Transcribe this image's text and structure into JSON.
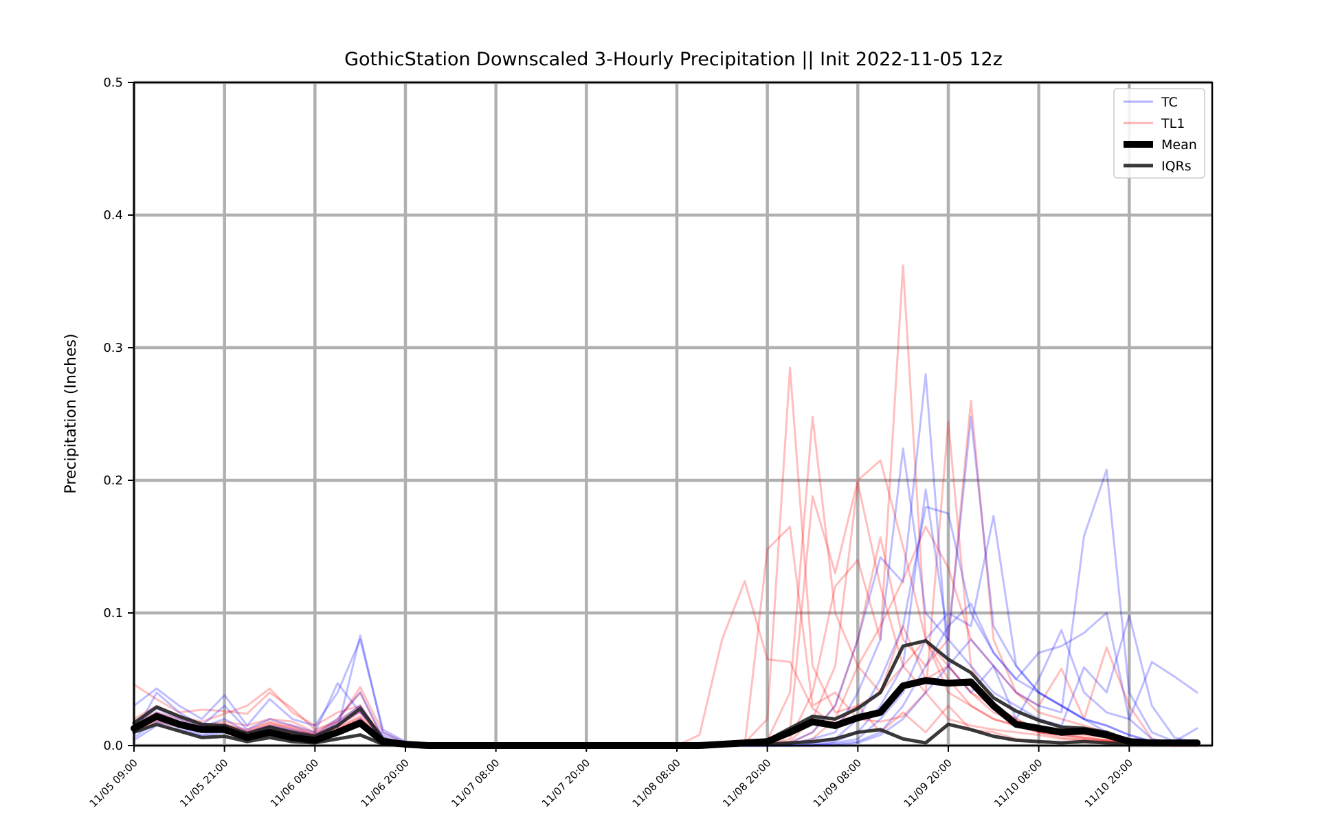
{
  "chart_data": {
    "type": "line",
    "title": "GothicStation Downscaled 3-Hourly Precipitation || Init 2022-11-05 12z",
    "xlabel": "",
    "ylabel": "Precipitation (Inches)",
    "ylim": [
      0,
      0.5
    ],
    "yticks": [
      "0.0",
      "0.1",
      "0.2",
      "0.3",
      "0.4",
      "0.5"
    ],
    "xlim": [
      "2022-11-05 09:00",
      "2022-11-11 08:00"
    ],
    "xticks": [
      "11/05 09:00",
      "11/05 21:00",
      "11/06 08:00",
      "11/06 20:00",
      "11/07 08:00",
      "11/07 20:00",
      "11/08 08:00",
      "11/08 20:00",
      "11/09 08:00",
      "11/09 20:00",
      "11/10 08:00",
      "11/10 20:00"
    ],
    "grid": true,
    "legend_position": "top-right",
    "legend": [
      {
        "label": "TC",
        "color": "#0000ff",
        "style": "thin"
      },
      {
        "label": "TL1",
        "color": "#ff0000",
        "style": "thin"
      },
      {
        "label": "Mean",
        "color": "#000000",
        "style": "thick"
      },
      {
        "label": "IQRs",
        "color": "#222222",
        "style": "medium"
      }
    ],
    "colors": {
      "TC": "#0000ff",
      "TL1": "#ff0000",
      "Mean": "#000000",
      "IQRs": "#222222"
    },
    "x": [
      "2022-11-05 09:00",
      "2022-11-05 12:00",
      "2022-11-05 15:00",
      "2022-11-05 18:00",
      "2022-11-05 21:00",
      "2022-11-06 00:00",
      "2022-11-06 03:00",
      "2022-11-06 06:00",
      "2022-11-06 09:00",
      "2022-11-06 12:00",
      "2022-11-06 15:00",
      "2022-11-06 18:00",
      "2022-11-06 21:00",
      "2022-11-07 00:00",
      "2022-11-07 03:00",
      "2022-11-07 06:00",
      "2022-11-07 09:00",
      "2022-11-07 12:00",
      "2022-11-07 15:00",
      "2022-11-07 18:00",
      "2022-11-07 21:00",
      "2022-11-08 00:00",
      "2022-11-08 03:00",
      "2022-11-08 06:00",
      "2022-11-08 09:00",
      "2022-11-08 12:00",
      "2022-11-08 15:00",
      "2022-11-08 18:00",
      "2022-11-08 21:00",
      "2022-11-09 00:00",
      "2022-11-09 03:00",
      "2022-11-09 06:00",
      "2022-11-09 09:00",
      "2022-11-09 12:00",
      "2022-11-09 15:00",
      "2022-11-09 18:00",
      "2022-11-09 21:00",
      "2022-11-10 00:00",
      "2022-11-10 03:00",
      "2022-11-10 06:00",
      "2022-11-10 09:00",
      "2022-11-10 12:00",
      "2022-11-10 15:00",
      "2022-11-10 18:00",
      "2022-11-10 21:00",
      "2022-11-11 00:00",
      "2022-11-11 03:00",
      "2022-11-11 06:00"
    ],
    "series": [
      {
        "name": "Mean",
        "group": "mean",
        "values": [
          0.013,
          0.022,
          0.016,
          0.012,
          0.012,
          0.006,
          0.01,
          0.006,
          0.004,
          0.01,
          0.017,
          0.003,
          0.001,
          0,
          0,
          0,
          0,
          0,
          0,
          0,
          0,
          0,
          0,
          0,
          0,
          0,
          0.001,
          0.002,
          0.003,
          0.01,
          0.018,
          0.015,
          0.021,
          0.025,
          0.045,
          0.049,
          0.047,
          0.048,
          0.03,
          0.016,
          0.013,
          0.01,
          0.011,
          0.008,
          0.003,
          0.002,
          0.002,
          0.002
        ]
      },
      {
        "group": "iqr",
        "values": [
          0.017,
          0.029,
          0.022,
          0.016,
          0.015,
          0.009,
          0.014,
          0.01,
          0.007,
          0.015,
          0.028,
          0.005,
          0.001,
          0,
          0,
          0,
          0,
          0,
          0,
          0,
          0,
          0,
          0,
          0,
          0,
          0,
          0.001,
          0.002,
          0.004,
          0.013,
          0.022,
          0.02,
          0.028,
          0.04,
          0.075,
          0.079,
          0.065,
          0.055,
          0.036,
          0.026,
          0.019,
          0.014,
          0.013,
          0.01,
          0.004,
          0.002,
          0.001,
          0.001
        ]
      },
      {
        "group": "iqr",
        "values": [
          0.01,
          0.016,
          0.011,
          0.006,
          0.007,
          0.003,
          0.006,
          0.003,
          0.002,
          0.005,
          0.008,
          0.001,
          0,
          0,
          0,
          0,
          0,
          0,
          0,
          0,
          0,
          0,
          0,
          0,
          0,
          0,
          0,
          0.001,
          0.001,
          0.002,
          0.003,
          0.005,
          0.01,
          0.012,
          0.005,
          0.002,
          0.016,
          0.012,
          0.007,
          0.004,
          0.003,
          0.002,
          0.003,
          0.002,
          0.001,
          0.001,
          0.001,
          0.001
        ]
      },
      {
        "group": "TL1",
        "values": [
          0.046,
          0.035,
          0.025,
          0.027,
          0.026,
          0.024,
          0.04,
          0.028,
          0.012,
          0.018,
          0.044,
          0.01,
          0.002,
          0,
          0,
          0,
          0,
          0,
          0,
          0,
          0,
          0,
          0,
          0,
          0,
          0.008,
          0.08,
          0.124,
          0.065,
          0.063,
          0.028,
          0.015,
          0.03,
          0.01,
          0.025,
          0.01,
          0.03,
          0.012,
          0.01,
          0.005,
          0.003,
          0.002,
          0.003,
          0.002,
          0.001,
          0,
          0,
          0
        ]
      },
      {
        "group": "TL1",
        "values": [
          0.02,
          0.03,
          0.022,
          0.018,
          0.024,
          0.03,
          0.043,
          0.025,
          0.015,
          0.025,
          0.03,
          0.006,
          0.001,
          0,
          0,
          0,
          0,
          0,
          0,
          0,
          0,
          0,
          0,
          0,
          0,
          0,
          0,
          0,
          0.148,
          0.165,
          0.03,
          0.04,
          0.02,
          0.018,
          0.022,
          0.04,
          0.02,
          0.015,
          0.012,
          0.01,
          0.008,
          0.005,
          0.004,
          0.003,
          0.002,
          0.001,
          0,
          0
        ]
      },
      {
        "group": "TL1",
        "values": [
          0.018,
          0.025,
          0.02,
          0.015,
          0.018,
          0.015,
          0.02,
          0.018,
          0.01,
          0.02,
          0.04,
          0.005,
          0.001,
          0,
          0,
          0,
          0,
          0,
          0,
          0,
          0,
          0,
          0,
          0,
          0,
          0,
          0,
          0.002,
          0.02,
          0.285,
          0.06,
          0.025,
          0.03,
          0.04,
          0.06,
          0.08,
          0.05,
          0.03,
          0.02,
          0.015,
          0.01,
          0.006,
          0.004,
          0.003,
          0.002,
          0.001,
          0,
          0
        ]
      },
      {
        "group": "TL1",
        "values": [
          0.012,
          0.02,
          0.018,
          0.012,
          0.014,
          0.01,
          0.016,
          0.014,
          0.008,
          0.015,
          0.025,
          0.004,
          0,
          0,
          0,
          0,
          0,
          0,
          0,
          0,
          0,
          0,
          0,
          0,
          0,
          0,
          0,
          0,
          0.004,
          0.04,
          0.248,
          0.1,
          0.06,
          0.04,
          0.09,
          0.05,
          0.06,
          0.04,
          0.03,
          0.02,
          0.01,
          0.008,
          0.005,
          0.004,
          0.002,
          0.001,
          0,
          0
        ]
      },
      {
        "group": "TL1",
        "values": [
          0.015,
          0.022,
          0.016,
          0.014,
          0.016,
          0.012,
          0.018,
          0.015,
          0.009,
          0.018,
          0.03,
          0.005,
          0,
          0,
          0,
          0,
          0,
          0,
          0,
          0,
          0,
          0,
          0,
          0,
          0,
          0,
          0,
          0,
          0.002,
          0.01,
          0.188,
          0.13,
          0.2,
          0.215,
          0.15,
          0.08,
          0.06,
          0.04,
          0.025,
          0.018,
          0.012,
          0.009,
          0.006,
          0.004,
          0.002,
          0.001,
          0,
          0
        ]
      },
      {
        "group": "TL1",
        "values": [
          0.01,
          0.018,
          0.014,
          0.01,
          0.012,
          0.008,
          0.012,
          0.01,
          0.006,
          0.012,
          0.02,
          0.003,
          0,
          0,
          0,
          0,
          0,
          0,
          0,
          0,
          0,
          0,
          0,
          0,
          0,
          0,
          0,
          0,
          0.001,
          0.005,
          0.04,
          0.12,
          0.14,
          0.08,
          0.362,
          0.08,
          0.04,
          0.03,
          0.02,
          0.015,
          0.01,
          0.008,
          0.006,
          0.004,
          0.002,
          0.001,
          0,
          0
        ]
      },
      {
        "group": "TL1",
        "values": [
          0.014,
          0.02,
          0.015,
          0.012,
          0.015,
          0.01,
          0.015,
          0.012,
          0.007,
          0.014,
          0.022,
          0.004,
          0,
          0,
          0,
          0,
          0,
          0,
          0,
          0,
          0,
          0,
          0,
          0,
          0,
          0,
          0,
          0,
          0.001,
          0.003,
          0.02,
          0.06,
          0.198,
          0.12,
          0.06,
          0.04,
          0.244,
          0.06,
          0.03,
          0.02,
          0.012,
          0.01,
          0.008,
          0.006,
          0.003,
          0.001,
          0,
          0
        ]
      },
      {
        "group": "TL1",
        "values": [
          0.016,
          0.024,
          0.018,
          0.013,
          0.016,
          0.011,
          0.017,
          0.013,
          0.008,
          0.016,
          0.026,
          0.004,
          0,
          0,
          0,
          0,
          0,
          0,
          0,
          0,
          0,
          0,
          0,
          0,
          0,
          0,
          0,
          0,
          0,
          0.002,
          0.01,
          0.03,
          0.08,
          0.157,
          0.08,
          0.06,
          0.08,
          0.26,
          0.08,
          0.04,
          0.03,
          0.058,
          0.02,
          0.074,
          0.03,
          0.005,
          0.001,
          0
        ]
      },
      {
        "group": "TL1",
        "values": [
          0.011,
          0.019,
          0.015,
          0.011,
          0.013,
          0.009,
          0.014,
          0.011,
          0.006,
          0.013,
          0.021,
          0.003,
          0,
          0,
          0,
          0,
          0,
          0,
          0,
          0,
          0,
          0,
          0,
          0,
          0,
          0,
          0,
          0,
          0,
          0.001,
          0.005,
          0.02,
          0.06,
          0.09,
          0.125,
          0.165,
          0.134,
          0.08,
          0.06,
          0.04,
          0.025,
          0.02,
          0.015,
          0.01,
          0.005,
          0.002,
          0,
          0
        ]
      },
      {
        "group": "TC",
        "values": [
          0.03,
          0.043,
          0.03,
          0.02,
          0.038,
          0.015,
          0.035,
          0.02,
          0.015,
          0.04,
          0.08,
          0.012,
          0.003,
          0,
          0,
          0,
          0,
          0,
          0,
          0,
          0,
          0,
          0,
          0,
          0,
          0,
          0,
          0,
          0,
          0.002,
          0.01,
          0.03,
          0.08,
          0.142,
          0.123,
          0.28,
          0.06,
          0.04,
          0.06,
          0.02,
          0.05,
          0.087,
          0.04,
          0.025,
          0.02,
          0.005,
          0.002,
          0
        ]
      },
      {
        "group": "TC",
        "values": [
          0.008,
          0.04,
          0.025,
          0.015,
          0.03,
          0.012,
          0.02,
          0.015,
          0.01,
          0.047,
          0.025,
          0.008,
          0.001,
          0,
          0,
          0,
          0,
          0,
          0,
          0,
          0,
          0,
          0,
          0,
          0,
          0,
          0,
          0,
          0,
          0.001,
          0.005,
          0.01,
          0.04,
          0.08,
          0.224,
          0.1,
          0.08,
          0.06,
          0.04,
          0.03,
          0.02,
          0.015,
          0.059,
          0.04,
          0.098,
          0.03,
          0.006,
          0.002
        ]
      },
      {
        "group": "TC",
        "values": [
          0.015,
          0.028,
          0.02,
          0.014,
          0.02,
          0.01,
          0.015,
          0.012,
          0.008,
          0.02,
          0.04,
          0.006,
          0.001,
          0,
          0,
          0,
          0,
          0,
          0,
          0,
          0,
          0,
          0,
          0,
          0,
          0,
          0,
          0,
          0,
          0,
          0.002,
          0.005,
          0.02,
          0.05,
          0.09,
          0.18,
          0.175,
          0.1,
          0.07,
          0.05,
          0.04,
          0.03,
          0.02,
          0.01,
          0.005,
          0.002,
          0,
          0
        ]
      },
      {
        "group": "TC",
        "values": [
          0.012,
          0.025,
          0.018,
          0.012,
          0.016,
          0.008,
          0.014,
          0.01,
          0.006,
          0.018,
          0.03,
          0.005,
          0,
          0,
          0,
          0,
          0,
          0,
          0,
          0,
          0,
          0,
          0,
          0,
          0,
          0,
          0,
          0,
          0,
          0,
          0.001,
          0.003,
          0.01,
          0.03,
          0.06,
          0.193,
          0.08,
          0.248,
          0.09,
          0.06,
          0.04,
          0.03,
          0.02,
          0.015,
          0.008,
          0.003,
          0.001,
          0
        ]
      },
      {
        "group": "TC",
        "values": [
          0.01,
          0.022,
          0.016,
          0.01,
          0.014,
          0.007,
          0.012,
          0.008,
          0.005,
          0.015,
          0.026,
          0.004,
          0,
          0,
          0,
          0,
          0,
          0,
          0,
          0,
          0,
          0,
          0,
          0,
          0,
          0,
          0,
          0,
          0,
          0,
          0,
          0.002,
          0.005,
          0.02,
          0.04,
          0.08,
          0.1,
          0.09,
          0.173,
          0.06,
          0.04,
          0.03,
          0.02,
          0.015,
          0.008,
          0.003,
          0.001,
          0
        ]
      },
      {
        "group": "TC",
        "values": [
          0.006,
          0.018,
          0.014,
          0.008,
          0.012,
          0.006,
          0.01,
          0.007,
          0.004,
          0.012,
          0.083,
          0.01,
          0.002,
          0,
          0,
          0,
          0,
          0,
          0,
          0,
          0,
          0,
          0,
          0,
          0,
          0,
          0,
          0,
          0,
          0,
          0,
          0.001,
          0.003,
          0.01,
          0.03,
          0.06,
          0.09,
          0.107,
          0.07,
          0.05,
          0.07,
          0.075,
          0.085,
          0.1,
          0.02,
          0.063,
          0.052,
          0.04
        ]
      },
      {
        "group": "TC",
        "values": [
          0.004,
          0.015,
          0.012,
          0.007,
          0.01,
          0.005,
          0.008,
          0.006,
          0.003,
          0.01,
          0.02,
          0.003,
          0,
          0,
          0,
          0,
          0,
          0,
          0,
          0,
          0,
          0,
          0,
          0,
          0,
          0,
          0,
          0,
          0,
          0,
          0,
          0,
          0.002,
          0.008,
          0.02,
          0.04,
          0.06,
          0.08,
          0.06,
          0.04,
          0.03,
          0.025,
          0.158,
          0.208,
          0.04,
          0.01,
          0.003,
          0.013
        ]
      }
    ]
  }
}
